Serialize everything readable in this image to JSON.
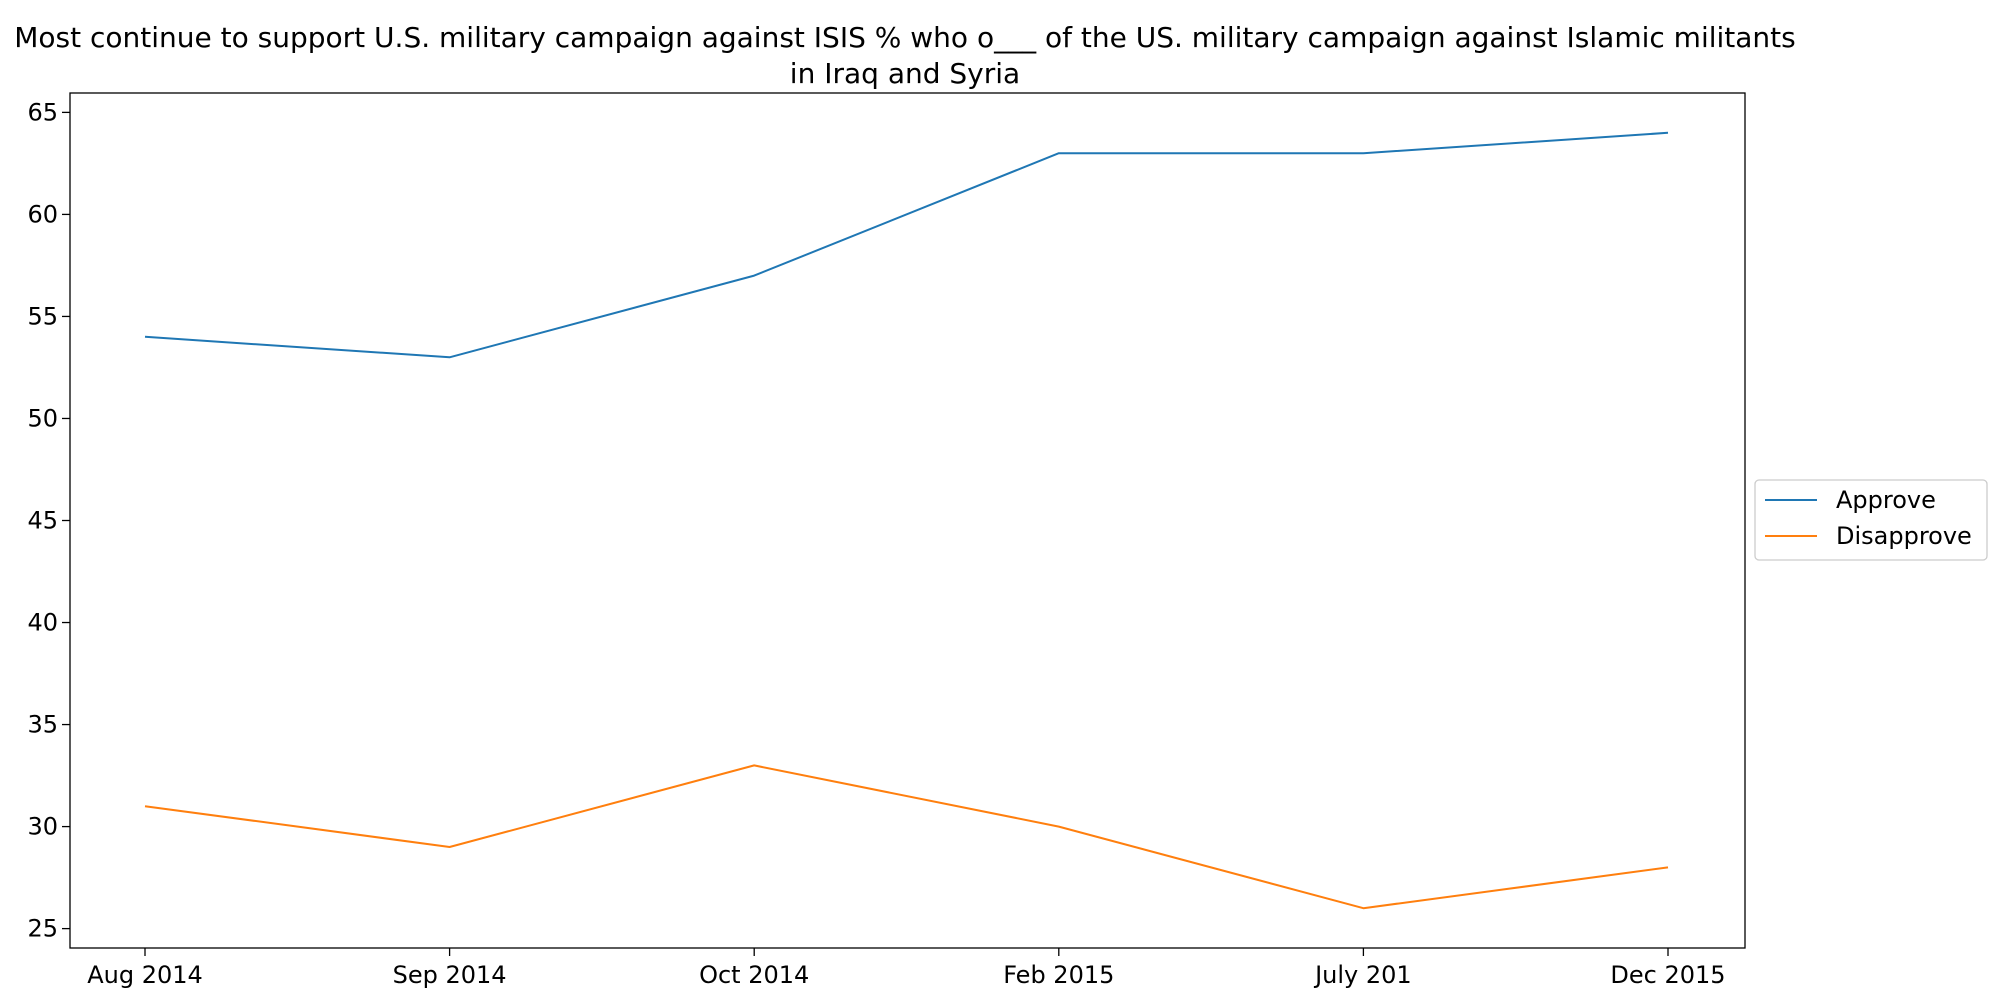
{
  "chart_data": {
    "type": "line",
    "title": "Most continue to support U.S. military campaign against ISIS % who o___ of the US. military campaign against Islamic militants in Iraq and Syria",
    "xlabel": "",
    "ylabel": "",
    "categories": [
      "Aug 2014",
      "Sep 2014",
      "Oct 2014",
      "Feb 2015",
      "July 201",
      "Dec 2015"
    ],
    "series": [
      {
        "name": "Approve",
        "color": "#1f77b4",
        "values": [
          54,
          53,
          57,
          63,
          63,
          64
        ]
      },
      {
        "name": "Disapprove",
        "color": "#ff7f0e",
        "values": [
          31,
          29,
          33,
          30,
          26,
          28
        ]
      }
    ],
    "ylim": [
      24.05,
      65.95
    ],
    "yticks": [
      25,
      30,
      35,
      40,
      45,
      50,
      55,
      60,
      65
    ],
    "grid": false,
    "legend": "center-right"
  }
}
